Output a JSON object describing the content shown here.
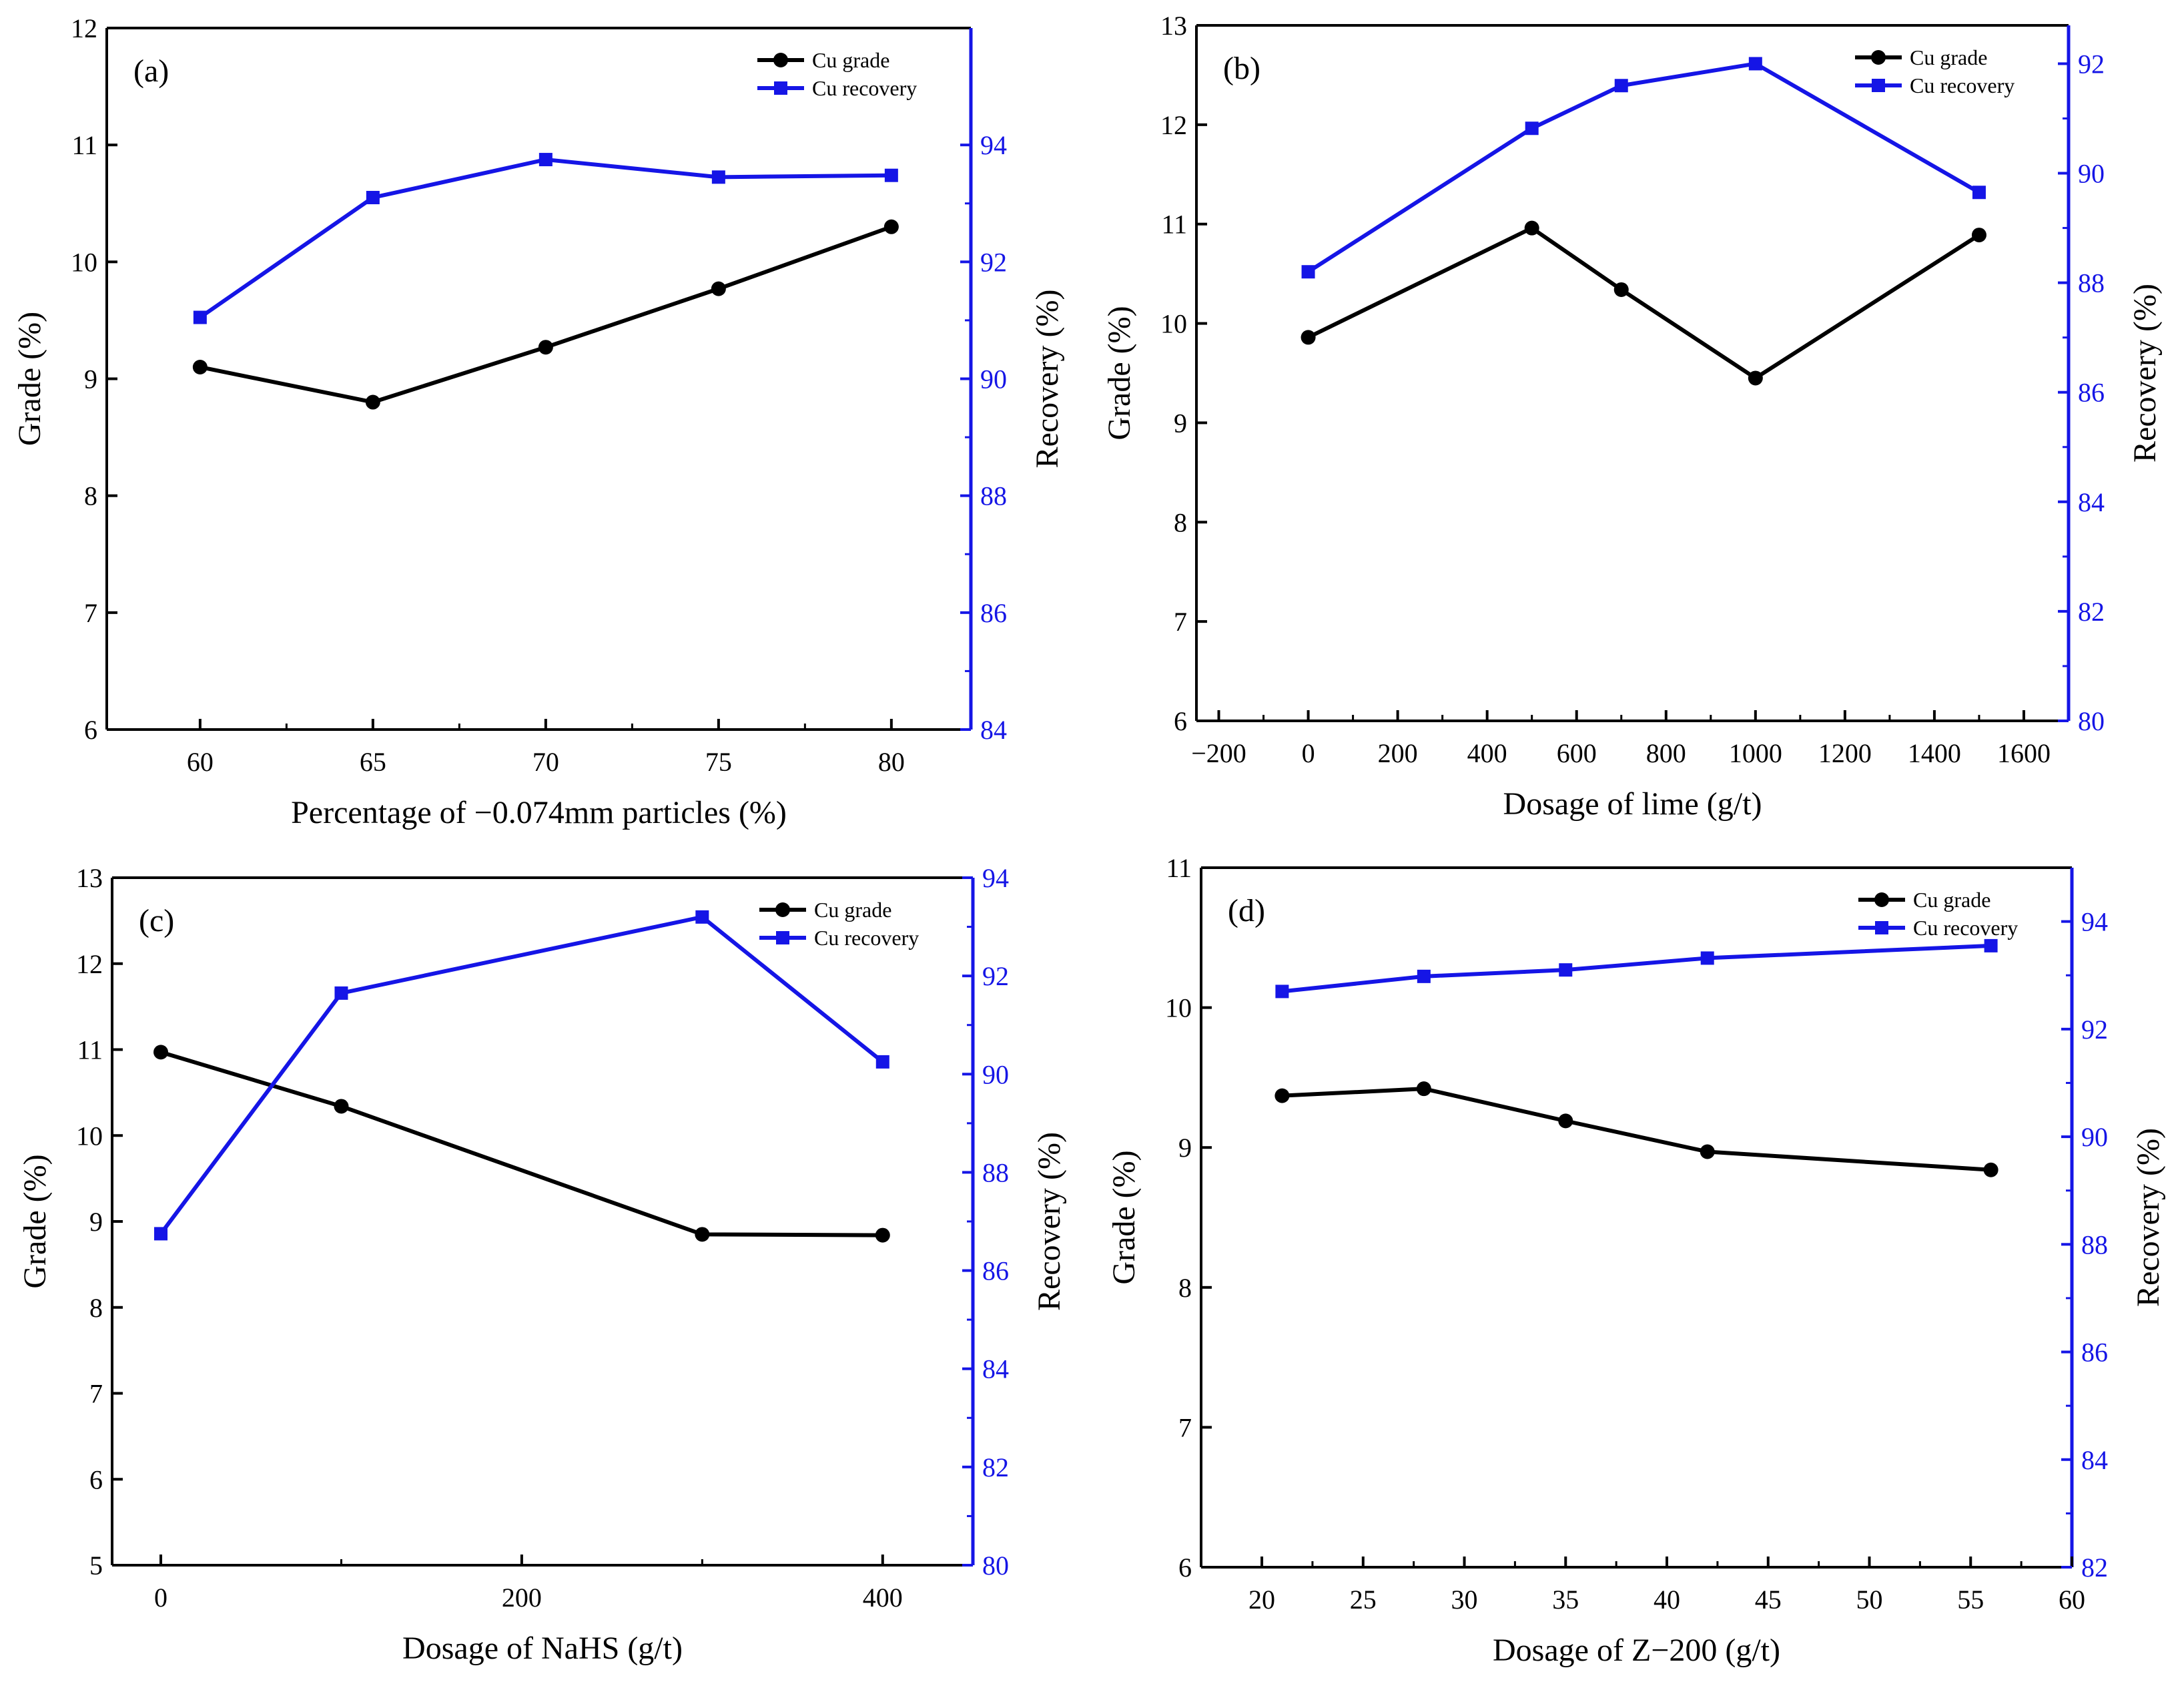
{
  "figure": {
    "series_names": [
      "Cu grade",
      "Cu recovery"
    ],
    "colors": {
      "grade": "#000000",
      "recovery": "#1515e6",
      "axis": "#000000"
    }
  },
  "chart_data": [
    {
      "type": "line",
      "panel": "(a)",
      "xlabel": "Percentage of −0.074mm particles (%)",
      "ylabel_left": "Grade (%)",
      "ylabel_right": "Recovery (%)",
      "xlim": [
        57.3,
        82.3
      ],
      "ylim_left": [
        6,
        12
      ],
      "ylim_right": [
        84,
        96
      ],
      "xticks": [
        60,
        65,
        70,
        75,
        80
      ],
      "yticks_left": [
        6,
        7,
        8,
        9,
        10,
        11,
        12
      ],
      "yticks_right": [
        84,
        86,
        88,
        90,
        92,
        94
      ],
      "x": [
        60,
        65,
        70,
        75,
        80
      ],
      "series": [
        {
          "name": "Cu grade",
          "axis": "left",
          "marker": "circle",
          "values": [
            9.1,
            8.8,
            9.27,
            9.77,
            10.3
          ]
        },
        {
          "name": "Cu recovery",
          "axis": "right",
          "marker": "square",
          "values": [
            91.05,
            93.1,
            93.75,
            93.45,
            93.48
          ]
        }
      ],
      "legend": "top-right"
    },
    {
      "type": "line",
      "panel": "(b)",
      "xlabel": "Dosage of lime (g/t)",
      "ylabel_left": "Grade (%)",
      "ylabel_right": "Recovery (%)",
      "xlim": [
        -250,
        1700
      ],
      "ylim_left": [
        6,
        13
      ],
      "ylim_right": [
        80,
        92.7
      ],
      "xticks": [
        -200,
        0,
        200,
        400,
        600,
        800,
        1000,
        1200,
        1400,
        1600
      ],
      "yticks_left": [
        6,
        7,
        8,
        9,
        10,
        11,
        12,
        13
      ],
      "yticks_right": [
        80,
        82,
        84,
        86,
        88,
        90,
        92
      ],
      "x": [
        0,
        500,
        700,
        1000,
        1500
      ],
      "series": [
        {
          "name": "Cu grade",
          "axis": "left",
          "marker": "circle",
          "values": [
            9.86,
            10.96,
            10.34,
            9.45,
            10.89
          ]
        },
        {
          "name": "Cu recovery",
          "axis": "right",
          "marker": "square",
          "values": [
            88.2,
            90.82,
            91.6,
            92.0,
            89.65
          ]
        }
      ],
      "legend": "top-right"
    },
    {
      "type": "line",
      "panel": "(c)",
      "xlabel": "Dosage of NaHS (g/t)",
      "ylabel_left": "Grade (%)",
      "ylabel_right": "Recovery (%)",
      "xlim": [
        -27,
        450
      ],
      "ylim_left": [
        5,
        13
      ],
      "ylim_right": [
        80,
        94
      ],
      "xticks": [
        0,
        200,
        400
      ],
      "yticks_left": [
        5,
        6,
        7,
        8,
        9,
        10,
        11,
        12,
        13
      ],
      "yticks_right": [
        80,
        82,
        84,
        86,
        88,
        90,
        92,
        94
      ],
      "x": [
        0,
        100,
        300,
        400
      ],
      "series": [
        {
          "name": "Cu grade",
          "axis": "left",
          "marker": "circle",
          "values": [
            10.97,
            10.34,
            8.85,
            8.84
          ]
        },
        {
          "name": "Cu recovery",
          "axis": "right",
          "marker": "square",
          "values": [
            86.75,
            91.65,
            93.2,
            90.25
          ]
        }
      ],
      "legend": "top-right"
    },
    {
      "type": "line",
      "panel": "(d)",
      "xlabel": "Dosage of Z−200 (g/t)",
      "ylabel_left": "Grade (%)",
      "ylabel_right": "Recovery (%)",
      "xlim": [
        17,
        60
      ],
      "ylim_left": [
        6,
        11
      ],
      "ylim_right": [
        82,
        95
      ],
      "xticks": [
        20,
        25,
        30,
        35,
        40,
        45,
        50,
        55,
        60
      ],
      "yticks_left": [
        6,
        7,
        8,
        9,
        10,
        11
      ],
      "yticks_right": [
        82,
        84,
        86,
        88,
        90,
        92,
        94
      ],
      "x": [
        21,
        28,
        35,
        42,
        56
      ],
      "series": [
        {
          "name": "Cu grade",
          "axis": "left",
          "marker": "circle",
          "values": [
            9.37,
            9.42,
            9.19,
            8.97,
            8.84
          ]
        },
        {
          "name": "Cu recovery",
          "axis": "right",
          "marker": "square",
          "values": [
            92.7,
            92.98,
            93.1,
            93.32,
            93.55
          ]
        }
      ],
      "legend": "top-right"
    }
  ]
}
